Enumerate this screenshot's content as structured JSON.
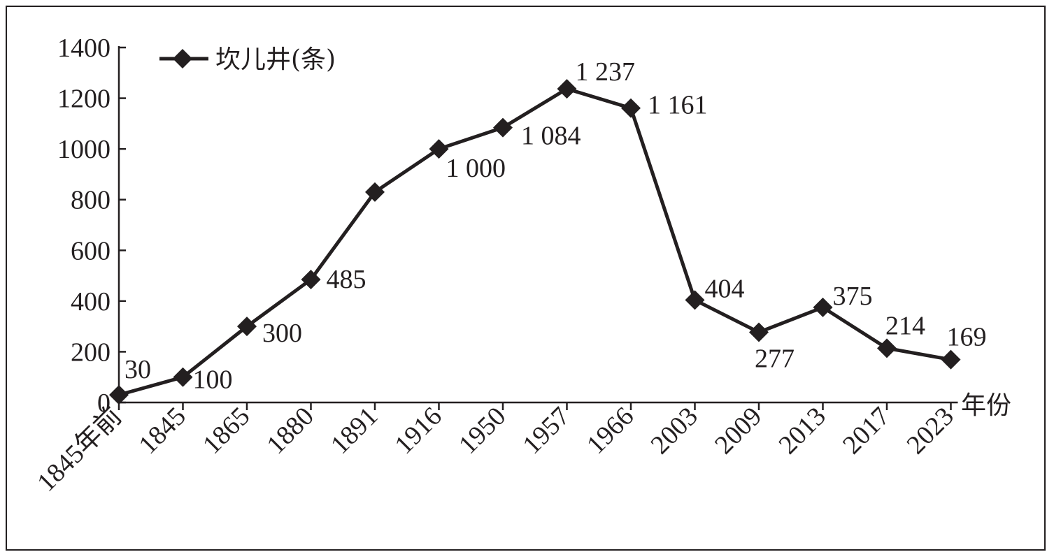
{
  "chart_data": {
    "type": "line",
    "title": "",
    "xlabel": "年份",
    "ylabel": "",
    "ylim": [
      0,
      1400
    ],
    "yticks": [
      0,
      200,
      400,
      600,
      800,
      1000,
      1200,
      1400
    ],
    "categories": [
      "1845年前",
      "1845",
      "1865",
      "1880",
      "1891",
      "1916",
      "1950",
      "1957",
      "1966",
      "2003",
      "2009",
      "2013",
      "2017",
      "2023"
    ],
    "series": [
      {
        "name": "坎儿井(条)",
        "values": [
          30,
          100,
          300,
          485,
          830,
          1000,
          1084,
          1237,
          1161,
          404,
          277,
          375,
          214,
          169
        ],
        "data_labels": [
          "30",
          "100",
          "300",
          "485",
          "",
          "1 000",
          "1 084",
          "1 237",
          "1 161",
          "404",
          "277",
          "375",
          "214",
          "169"
        ]
      }
    ],
    "legend_position": "top-left",
    "grid": false,
    "line_color": "#231f20",
    "marker": "diamond"
  }
}
